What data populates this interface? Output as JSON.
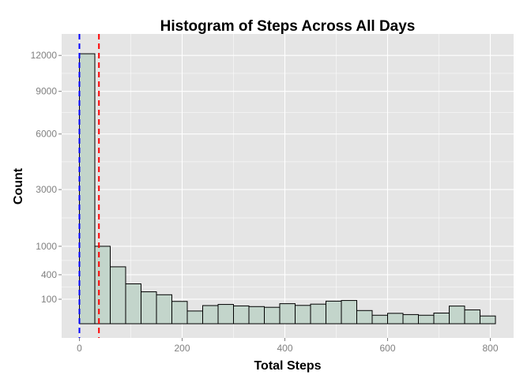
{
  "chart_data": {
    "type": "bar",
    "title": "Histogram of Steps Across All Days",
    "xlabel": "Total Steps",
    "ylabel": "Count",
    "xlim": [
      -40,
      850
    ],
    "y_scale": "sqrt",
    "ylim": [
      0,
      13000
    ],
    "grid": true,
    "bin_width": 30,
    "bins": [
      {
        "x0": 0,
        "x1": 30,
        "count": 12150
      },
      {
        "x0": 30,
        "x1": 60,
        "count": 1000
      },
      {
        "x0": 60,
        "x1": 90,
        "count": 540
      },
      {
        "x0": 90,
        "x1": 120,
        "count": 265
      },
      {
        "x0": 120,
        "x1": 150,
        "count": 170
      },
      {
        "x0": 150,
        "x1": 180,
        "count": 140
      },
      {
        "x0": 180,
        "x1": 210,
        "count": 83
      },
      {
        "x0": 210,
        "x1": 240,
        "count": 27
      },
      {
        "x0": 240,
        "x1": 270,
        "count": 55
      },
      {
        "x0": 270,
        "x1": 300,
        "count": 62
      },
      {
        "x0": 300,
        "x1": 330,
        "count": 53
      },
      {
        "x0": 330,
        "x1": 360,
        "count": 49
      },
      {
        "x0": 360,
        "x1": 390,
        "count": 45
      },
      {
        "x0": 390,
        "x1": 420,
        "count": 67
      },
      {
        "x0": 420,
        "x1": 450,
        "count": 56
      },
      {
        "x0": 450,
        "x1": 480,
        "count": 64
      },
      {
        "x0": 480,
        "x1": 510,
        "count": 85
      },
      {
        "x0": 510,
        "x1": 540,
        "count": 90
      },
      {
        "x0": 540,
        "x1": 570,
        "count": 29
      },
      {
        "x0": 570,
        "x1": 600,
        "count": 12
      },
      {
        "x0": 600,
        "x1": 630,
        "count": 18
      },
      {
        "x0": 630,
        "x1": 660,
        "count": 14
      },
      {
        "x0": 660,
        "x1": 690,
        "count": 12
      },
      {
        "x0": 690,
        "x1": 720,
        "count": 19
      },
      {
        "x0": 720,
        "x1": 750,
        "count": 52
      },
      {
        "x0": 750,
        "x1": 780,
        "count": 32
      },
      {
        "x0": 780,
        "x1": 810,
        "count": 10
      }
    ],
    "x_ticks": [
      {
        "value": 0,
        "label": "0"
      },
      {
        "value": 200,
        "label": "200"
      },
      {
        "value": 400,
        "label": "400"
      },
      {
        "value": 600,
        "label": "600"
      },
      {
        "value": 800,
        "label": "800"
      }
    ],
    "y_ticks": [
      {
        "value": 100,
        "label": "100"
      },
      {
        "value": 400,
        "label": "400"
      },
      {
        "value": 1000,
        "label": "1000"
      },
      {
        "value": 3000,
        "label": "3000"
      },
      {
        "value": 6000,
        "label": "6000"
      },
      {
        "value": 9000,
        "label": "9000"
      },
      {
        "value": 12000,
        "label": "12000"
      }
    ],
    "reference_lines": [
      {
        "x": 0,
        "color": "#0000ff",
        "style": "dashed"
      },
      {
        "x": 38,
        "color": "#ff0000",
        "style": "dashed"
      }
    ],
    "colors": {
      "panel": "#e5e5e5",
      "grid": "#ffffff",
      "bar_fill": "#c3d5cb",
      "bar_stroke": "#000000"
    }
  }
}
